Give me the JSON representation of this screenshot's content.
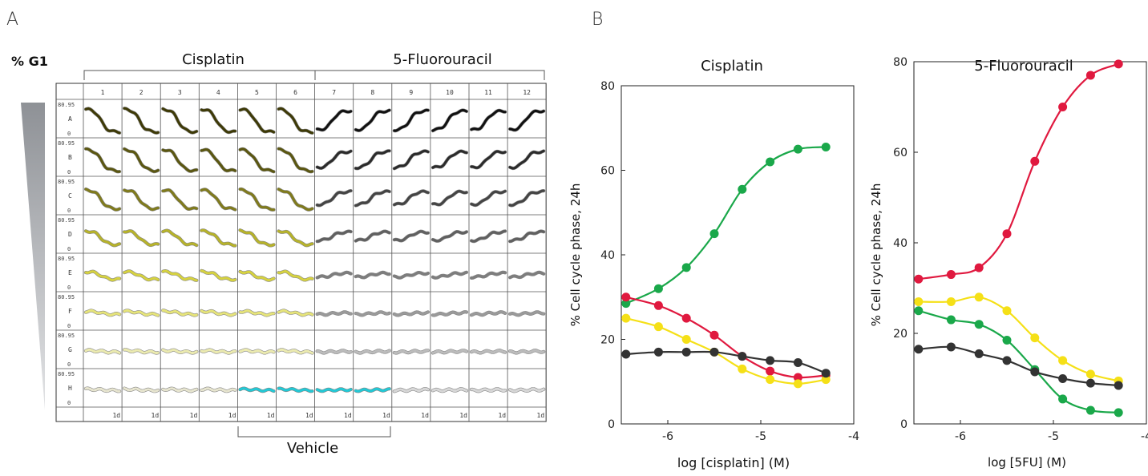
{
  "panel_a": {
    "letter": "A",
    "y_label": "% G1",
    "group_labels": [
      "Cisplatin",
      "5-Fluorouracil"
    ],
    "vehicle_label": "Vehicle",
    "columns": [
      "1",
      "2",
      "3",
      "4",
      "5",
      "6",
      "7",
      "8",
      "9",
      "10",
      "11",
      "12"
    ],
    "rows": [
      "A",
      "B",
      "C",
      "D",
      "E",
      "F",
      "G",
      "H"
    ],
    "y_max_label": "80.95",
    "y_min_label": "0",
    "time_label": "1d",
    "colors": {
      "cisplatin_rows": [
        "#3e3a06",
        "#5b5710",
        "#807b1c",
        "#b7b32a",
        "#d6d240",
        "#e6e47a",
        "#ecebb0",
        "#e7e5cf"
      ],
      "fu_rows": [
        "#111111",
        "#2b2b2b",
        "#444444",
        "#606060",
        "#7d7d7d",
        "#9a9a9a",
        "#bcbcbc",
        "#d7d7d7"
      ],
      "vehicle": "#22c9d6"
    }
  },
  "chart_data": [
    {
      "type": "scatter",
      "title": "Cisplatin",
      "xlabel": "log [cisplatin] (M)",
      "ylabel": "% Cell cycle phase, 24h",
      "xlim": [
        -6.5,
        -4
      ],
      "ylim": [
        0,
        80
      ],
      "xticks": [
        -6,
        -5,
        -4
      ],
      "yticks": [
        0,
        20,
        40,
        60,
        80
      ],
      "x": [
        -6.45,
        -6.1,
        -5.8,
        -5.5,
        -5.2,
        -4.9,
        -4.6,
        -4.3
      ],
      "series": [
        {
          "color": "#1aa84a",
          "values": [
            28.5,
            32,
            37,
            45,
            55.5,
            62,
            65,
            65.5
          ]
        },
        {
          "color": "#e0193f",
          "values": [
            30,
            28,
            25,
            21,
            16,
            12.5,
            11,
            11.5
          ]
        },
        {
          "color": "#f5e017",
          "values": [
            25,
            23,
            20,
            17,
            13,
            10.5,
            9.5,
            10.5
          ]
        },
        {
          "color": "#333333",
          "values": [
            16.5,
            17,
            17,
            17,
            16,
            15,
            14.5,
            12
          ]
        }
      ]
    },
    {
      "type": "scatter",
      "title": "5-Fluorouracil",
      "xlabel": "log [5FU] (M)",
      "ylabel": "% Cell cycle phase, 24h",
      "xlim": [
        -6.5,
        -4
      ],
      "ylim": [
        0,
        80
      ],
      "xticks": [
        -6,
        -5,
        -4
      ],
      "yticks": [
        0,
        20,
        40,
        60,
        80
      ],
      "x": [
        -6.45,
        -6.1,
        -5.8,
        -5.5,
        -5.2,
        -4.9,
        -4.6,
        -4.3
      ],
      "series": [
        {
          "color": "#e0193f",
          "values": [
            32,
            33,
            34.5,
            42,
            58,
            70,
            77,
            79.5
          ]
        },
        {
          "color": "#f5e017",
          "values": [
            27,
            27,
            28,
            25,
            19,
            14,
            11,
            9.5
          ]
        },
        {
          "color": "#1aa84a",
          "values": [
            25,
            23,
            22,
            18.5,
            12,
            5.5,
            3,
            2.5
          ]
        },
        {
          "color": "#333333",
          "values": [
            16.5,
            17,
            15.5,
            14,
            11.5,
            10,
            9,
            8.5
          ]
        }
      ]
    }
  ]
}
